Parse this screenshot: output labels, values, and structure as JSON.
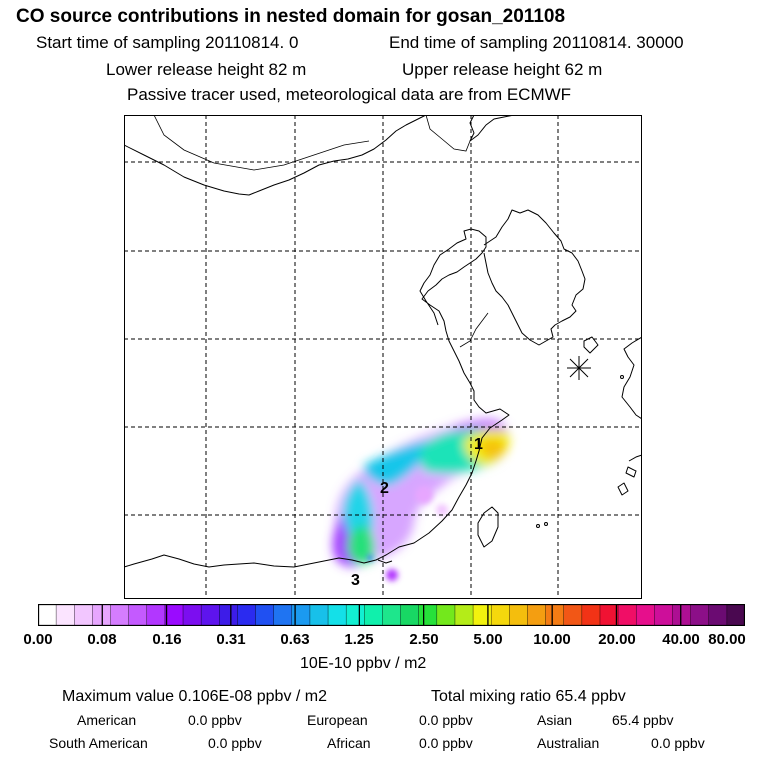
{
  "header": {
    "title": "CO  source contributions in nested domain for gosan_201108",
    "start_label": "Start time of sampling 20110814.     0",
    "end_label": "End time of sampling 20110814. 30000",
    "lower_label": "Lower release height   82 m",
    "upper_label": "Upper release height   62 m",
    "info": "Passive tracer used, meteorological data are from ECMWF"
  },
  "map": {
    "labels": [
      "1",
      "2",
      "3"
    ],
    "station_marker": "asterisk-icon",
    "land_line_color": "#000000",
    "grid_line_style": "dashed"
  },
  "colorbar": {
    "ticks": [
      "0.00",
      "0.08",
      "0.16",
      "0.31",
      "0.63",
      "1.25",
      "2.50",
      "5.00",
      "10.00",
      "20.00",
      "40.00",
      "80.00"
    ],
    "units": "10E-10 ppbv / m2",
    "colors": [
      "#ffffff",
      "#fbe4ff",
      "#f2c6ff",
      "#e7a6ff",
      "#d57dff",
      "#c45aff",
      "#b237ff",
      "#9a0bff",
      "#7c0ef0",
      "#5e14ee",
      "#3d1ce8",
      "#2b2bf0",
      "#2050f2",
      "#1f74f2",
      "#1b9af0",
      "#18c0ea",
      "#14e0e8",
      "#12f0d2",
      "#10f0ac",
      "#1ee68c",
      "#18d864",
      "#26e13a",
      "#73e81c",
      "#b4ec18",
      "#f2f20e",
      "#f5d80d",
      "#f4be0d",
      "#f49e11",
      "#f47c14",
      "#f25716",
      "#f23316",
      "#f01233",
      "#f00e66",
      "#e60f8c",
      "#cd0f9a",
      "#ad0f93",
      "#8c0f88",
      "#6b0b72",
      "#4a0850"
    ]
  },
  "stats": {
    "max_line": "Maximum value  0.106E-08 ppbv / m2",
    "total_line": "Total mixing ratio       65.4 ppbv",
    "american_label": "American",
    "american_value": "0.0 ppbv",
    "european_label": "European",
    "european_value": "0.0 ppbv",
    "asian_label": "Asian",
    "asian_value": "65.4 ppbv",
    "south_american_label": "South American",
    "south_american_value": "0.0 ppbv",
    "african_label": "African",
    "african_value": "0.0 ppbv",
    "australian_label": "Australian",
    "australian_value": "0.0 ppbv"
  }
}
